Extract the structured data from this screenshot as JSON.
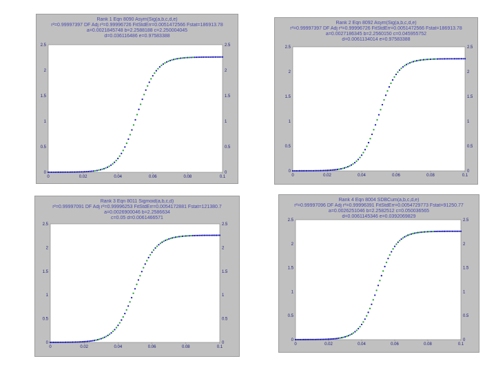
{
  "colors": {
    "panel_bg": "#c0c0c0",
    "plot_bg": "#ffffff",
    "header_text": "#4a4ab0",
    "tick_text": "#202080",
    "points_primary": "#1a1ab4",
    "points_alt": "#22a030"
  },
  "chart_data": [
    {
      "type": "scatter",
      "title": "Rank 1  Eqn 8090  Asym(Sig(a,b,c,d,e)",
      "subtitle": [
        "r²=0.99997397  DF Adj r²=0.99996726  FitStdErr=0.0051472566  Fstat=186913.78",
        "a=0.0021845748 b=2.2588188 c=2.250004045",
        "d=0.036116486 e=0.97583388"
      ],
      "xlim": [
        0,
        0.1
      ],
      "ylim": [
        0,
        2.5
      ],
      "x_ticks": [
        "0",
        "0.02",
        "0.04",
        "0.06",
        "0.08",
        "0.1"
      ],
      "y_ticks": [
        "0",
        "0.5",
        "1",
        "1.5",
        "2",
        "2.5"
      ],
      "curve": {
        "base": 0.0,
        "top": 2.26,
        "center": 0.051,
        "width": 0.0055
      },
      "grid": false
    },
    {
      "type": "scatter",
      "title": "Rank 2  Eqn 8092  Asym(Sig(a,b,c,d,e)",
      "subtitle": [
        "r²=0.99997397  DF Adj r²=0.99996726  FitStdErr=0.0051472566  Fstat=186913.78",
        "a=0.0027186345 b=2.2560150 c=0.045955752",
        "d=0.0061134014 e=0.97583388"
      ],
      "xlim": [
        0,
        0.1
      ],
      "ylim": [
        0,
        2.5
      ],
      "x_ticks": [
        "0",
        "0.02",
        "0.04",
        "0.06",
        "0.08",
        "0.1"
      ],
      "y_ticks": [
        "0",
        "0.5",
        "1",
        "1.5",
        "2",
        "2.5"
      ],
      "curve": {
        "base": 0.0,
        "top": 2.26,
        "center": 0.05,
        "width": 0.0055
      },
      "grid": false
    },
    {
      "type": "scatter",
      "title": "Rank 3  Eqn 8011  Sigmoid(a,b,c,d)",
      "subtitle": [
        "r²=0.99997091  DF Adj r²=0.99996253  FitStdErr=0.0054172881  Fstat=121380.7",
        "a=0.0026900046 b=2.2586634",
        "c=0.05 d=0.0061466571"
      ],
      "xlim": [
        0,
        0.1
      ],
      "ylim": [
        0,
        2.5
      ],
      "x_ticks": [
        "0",
        "0.02",
        "0.04",
        "0.06",
        "0.08",
        "0.1"
      ],
      "y_ticks": [
        "0",
        "0.5",
        "1",
        "1.5",
        "2",
        "2.5"
      ],
      "curve": {
        "base": 0.0,
        "top": 2.26,
        "center": 0.05,
        "width": 0.006
      },
      "grid": false
    },
    {
      "type": "scatter",
      "title": "Rank 4  Eqn 8004  SDBCum(a,b,c,d,e)",
      "subtitle": [
        "r²=0.99997096  DF Adj r²=0.99996391  FitStdErr=0.0054729773  Fstat=91250.77",
        "a=0.0026251046 b=2.2582512 c=0.050036565",
        "d=0.0061145346 e=0.0392069829"
      ],
      "xlim": [
        0,
        0.1
      ],
      "ylim": [
        0,
        2.5
      ],
      "x_ticks": [
        "0",
        "0.02",
        "0.04",
        "0.06",
        "0.08",
        "0.1"
      ],
      "y_ticks": [
        "0",
        "0.5",
        "1",
        "1.5",
        "2",
        "2.5"
      ],
      "curve": {
        "base": 0.0,
        "top": 2.26,
        "center": 0.05,
        "width": 0.0055
      },
      "grid": false
    }
  ]
}
